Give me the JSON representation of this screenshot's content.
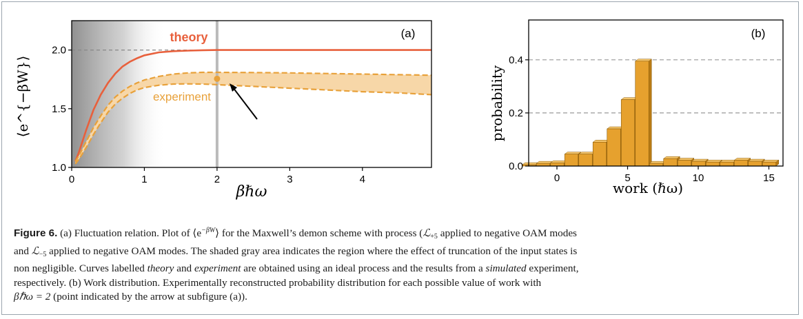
{
  "figure": {
    "panel_a": {
      "tag": "(a)",
      "ylabel": "⟨e^{−βW}⟩",
      "xlabel": "βℏω",
      "xticks": [
        "0",
        "1",
        "2",
        "3",
        "4"
      ],
      "yticks": [
        "1.0",
        "1.5",
        "2.0"
      ],
      "labels": {
        "theory": "theory",
        "experiment": "experiment"
      }
    },
    "panel_b": {
      "tag": "(b)",
      "ylabel": "probability",
      "xlabel": "work (ℏω)",
      "xticks": [
        "0",
        "5",
        "10",
        "15"
      ],
      "yticks": [
        "0.0",
        "0.2",
        "0.4"
      ]
    }
  },
  "chart_data": [
    {
      "type": "line",
      "panel": "(a)",
      "xlabel": "βℏω",
      "ylabel": "⟨e^{−βW}⟩",
      "xlim": [
        0,
        4.95
      ],
      "ylim": [
        1.0,
        2.25
      ],
      "reference_line": 2.0,
      "highlight_x": 2.0,
      "shaded_region": [
        0,
        1.3
      ],
      "colors": {
        "theory": "#e8603c",
        "experiment": "#e8a13a",
        "band": "#f7d7a8",
        "shade": "#8a8a8a"
      },
      "x": [
        0.05,
        0.1,
        0.2,
        0.3,
        0.4,
        0.5,
        0.6,
        0.7,
        0.8,
        0.9,
        1.0,
        1.2,
        1.4,
        1.6,
        1.8,
        2.0,
        2.5,
        3.0,
        3.5,
        4.0,
        4.5,
        4.95
      ],
      "series": [
        {
          "name": "theory",
          "values": [
            1.05,
            1.13,
            1.32,
            1.49,
            1.62,
            1.72,
            1.8,
            1.86,
            1.9,
            1.93,
            1.955,
            1.98,
            1.99,
            1.995,
            1.998,
            2.0,
            2.0,
            2.0,
            2.0,
            2.0,
            2.0,
            2.0
          ]
        },
        {
          "name": "experiment_upper",
          "values": [
            1.05,
            1.1,
            1.22,
            1.34,
            1.44,
            1.53,
            1.6,
            1.65,
            1.69,
            1.72,
            1.745,
            1.775,
            1.795,
            1.805,
            1.81,
            1.81,
            1.808,
            1.805,
            1.8,
            1.795,
            1.79,
            1.785
          ]
        },
        {
          "name": "experiment_lower",
          "values": [
            1.03,
            1.07,
            1.17,
            1.28,
            1.38,
            1.47,
            1.54,
            1.59,
            1.63,
            1.66,
            1.68,
            1.7,
            1.71,
            1.712,
            1.71,
            1.705,
            1.69,
            1.675,
            1.66,
            1.645,
            1.635,
            1.62
          ]
        }
      ],
      "point": {
        "x": 2.0,
        "y": 1.755
      }
    },
    {
      "type": "bar",
      "panel": "(b)",
      "xlabel": "work (ℏω)",
      "ylabel": "probability",
      "ylim": [
        0,
        0.55
      ],
      "xlim": [
        -2,
        16
      ],
      "reference_lines": [
        0.2,
        0.4
      ],
      "color": "#e6a12e",
      "x": [
        -2,
        -1,
        0,
        1,
        2,
        3,
        4,
        5,
        6,
        7,
        8,
        9,
        10,
        11,
        12,
        13,
        14,
        15
      ],
      "values": [
        0.005,
        0.01,
        0.012,
        0.045,
        0.045,
        0.09,
        0.14,
        0.25,
        0.395,
        0.01,
        0.028,
        0.022,
        0.018,
        0.015,
        0.015,
        0.022,
        0.018,
        0.015
      ]
    }
  ],
  "caption": {
    "label": "Figure 6.",
    "line1_a": " (a) Fluctuation relation. Plot of ⟨e",
    "line1_sup": "−βW",
    "line1_b": "⟩ for the Maxwell’s demon scheme with process (",
    "L": "ℒ",
    "sub_plus5": "+5",
    "line1_c": " applied to negative OAM modes",
    "line2_a": "and ",
    "sub_minus5": "−5",
    "line2_b": " applied to negative OAM modes. The shaded gray area indicates the region where the effect of truncation of the input states is",
    "line3_a": "non negligible. Curves labelled ",
    "theory": "theory",
    "line3_b": " and ",
    "experiment": "experiment",
    "line3_c": " are obtained using an ideal process and the results from a ",
    "simulated": "simulated",
    "line3_d": " experiment,",
    "line4": "respectively. (b) Work distribution. Experimentally reconstructed probability distribution for each possible value of work with",
    "line5_math": "βℏω = 2",
    "line5_b": " (point indicated by the arrow at subfigure (a))."
  }
}
